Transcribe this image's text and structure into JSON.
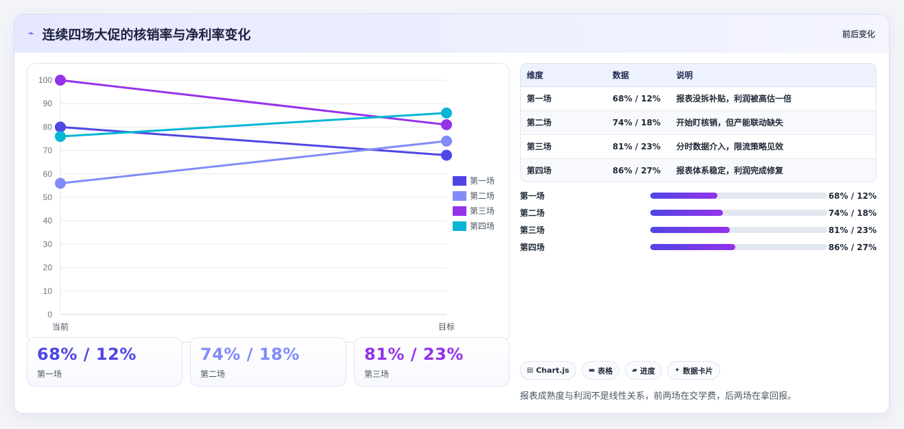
{
  "header": {
    "icon": "lightning-icon",
    "title": "连续四场大促的核销率与净利率变化",
    "right_label": "前后变化"
  },
  "chart_data": {
    "type": "line",
    "categories": [
      "当前",
      "目标"
    ],
    "ylim": [
      0,
      100
    ],
    "yticks": [
      0,
      10,
      20,
      30,
      40,
      50,
      60,
      70,
      80,
      90,
      100
    ],
    "grid": true,
    "legend_position": "right",
    "series": [
      {
        "name": "第一场",
        "values": [
          80,
          68
        ],
        "color": "#4f46e5"
      },
      {
        "name": "第二场",
        "values": [
          56,
          74
        ],
        "color": "#818cf8"
      },
      {
        "name": "第三场",
        "values": [
          100,
          81
        ],
        "color": "#9333ea"
      },
      {
        "name": "第四场",
        "values": [
          76,
          86
        ],
        "color": "#06b6d4"
      }
    ]
  },
  "stats": [
    {
      "value": "68% / 12%",
      "label": "第一场",
      "color": "#4f46e5"
    },
    {
      "value": "74% / 18%",
      "label": "第二场",
      "color": "#818cf8"
    },
    {
      "value": "81% / 23%",
      "label": "第三场",
      "color": "#9333ea"
    }
  ],
  "table": {
    "headers": [
      "维度",
      "数据",
      "说明"
    ],
    "rows": [
      [
        "第一场",
        "68% / 12%",
        "报表没拆补贴，利润被高估一倍"
      ],
      [
        "第二场",
        "74% / 18%",
        "开始盯核销，但产能联动缺失"
      ],
      [
        "第三场",
        "81% / 23%",
        "分时数据介入，限流策略见效"
      ],
      [
        "第四场",
        "86% / 27%",
        "报表体系稳定，利润完成修复"
      ]
    ]
  },
  "progress": [
    {
      "label": "第一场",
      "value": "68% / 12%",
      "percent": 38
    },
    {
      "label": "第二场",
      "value": "74% / 18%",
      "percent": 41
    },
    {
      "label": "第三场",
      "value": "81% / 23%",
      "percent": 45
    },
    {
      "label": "第四场",
      "value": "86% / 27%",
      "percent": 48
    }
  ],
  "tags": [
    {
      "icon": "chart-icon",
      "glyph": "▤",
      "label": "Chart.js"
    },
    {
      "icon": "table-icon",
      "glyph": "▬",
      "label": "表格"
    },
    {
      "icon": "progress-icon",
      "glyph": "▰",
      "label": "进度"
    },
    {
      "icon": "sparkle-icon",
      "glyph": "✦",
      "label": "数据卡片"
    }
  ],
  "note": "报表成熟度与利润不是线性关系，前两场在交学费，后两场在拿回报。"
}
